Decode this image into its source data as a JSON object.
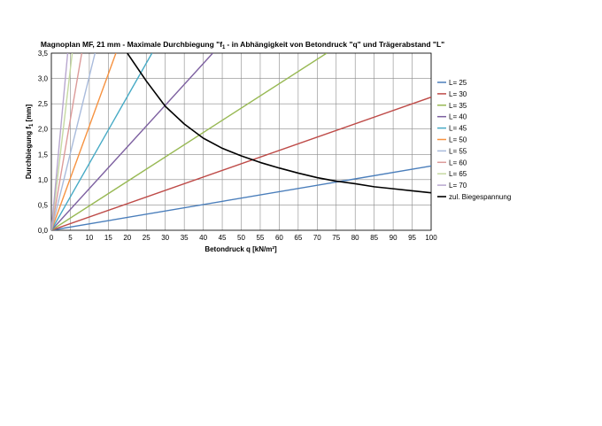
{
  "chart_data": {
    "type": "line",
    "title_parts": [
      "Magnoplan MF, 21 mm - Maximale Durchbiegung \"f",
      "1",
      "- in Abhängigkeit von Betondruck \"q\" und Trägerabstand \"L\""
    ],
    "xlabel": "Betondruck q [kN/m²]",
    "ylabel_parts": [
      "Durchbiegung f",
      "1",
      " [mm]"
    ],
    "xlim": [
      0,
      100
    ],
    "ylim": [
      0,
      3.5
    ],
    "x_ticks": [
      "0",
      "5",
      "10",
      "15",
      "20",
      "25",
      "30",
      "35",
      "40",
      "45",
      "50",
      "55",
      "60",
      "65",
      "70",
      "75",
      "80",
      "85",
      "90",
      "95",
      "100"
    ],
    "y_ticks": [
      "0,0",
      "0,5",
      "1,0",
      "1,5",
      "2,0",
      "2,5",
      "3,0",
      "3,5"
    ],
    "grid": true,
    "legend_position": "right",
    "series": [
      {
        "name": "L= 25",
        "color": "#4a7ebb",
        "x": [
          0,
          100
        ],
        "y": [
          0,
          1.27
        ]
      },
      {
        "name": "L= 30",
        "color": "#be4b48",
        "x": [
          0,
          100
        ],
        "y": [
          0,
          2.63
        ]
      },
      {
        "name": "L= 35",
        "color": "#98b954",
        "x": [
          0,
          72.5
        ],
        "y": [
          0,
          3.5
        ]
      },
      {
        "name": "L= 40",
        "color": "#7d60a0",
        "x": [
          0,
          42.5
        ],
        "y": [
          0,
          3.5
        ]
      },
      {
        "name": "L= 45",
        "color": "#46aac5",
        "x": [
          0,
          26.5
        ],
        "y": [
          0,
          3.5
        ]
      },
      {
        "name": "L= 50",
        "color": "#f69240",
        "x": [
          0,
          17.0
        ],
        "y": [
          0,
          3.5
        ]
      },
      {
        "name": "L= 55",
        "color": "#a9bbdc",
        "x": [
          0,
          11.5
        ],
        "y": [
          0,
          3.5
        ]
      },
      {
        "name": "L= 60",
        "color": "#dc9b9a",
        "x": [
          0,
          8.0
        ],
        "y": [
          0,
          3.5
        ]
      },
      {
        "name": "L= 65",
        "color": "#c5d9a1",
        "x": [
          0,
          5.5
        ],
        "y": [
          0,
          3.5
        ]
      },
      {
        "name": "L= 70",
        "color": "#b8a7cf",
        "x": [
          0,
          4.3
        ],
        "y": [
          0,
          3.5
        ]
      },
      {
        "name": "zul. Biegespannung",
        "color": "#000000",
        "x": [
          20,
          25,
          30,
          35,
          40,
          45,
          50,
          55,
          60,
          65,
          70,
          75,
          80,
          85,
          90,
          95,
          100
        ],
        "y": [
          3.5,
          2.95,
          2.45,
          2.1,
          1.82,
          1.62,
          1.47,
          1.34,
          1.23,
          1.13,
          1.04,
          0.97,
          0.92,
          0.86,
          0.82,
          0.78,
          0.74
        ]
      }
    ]
  }
}
